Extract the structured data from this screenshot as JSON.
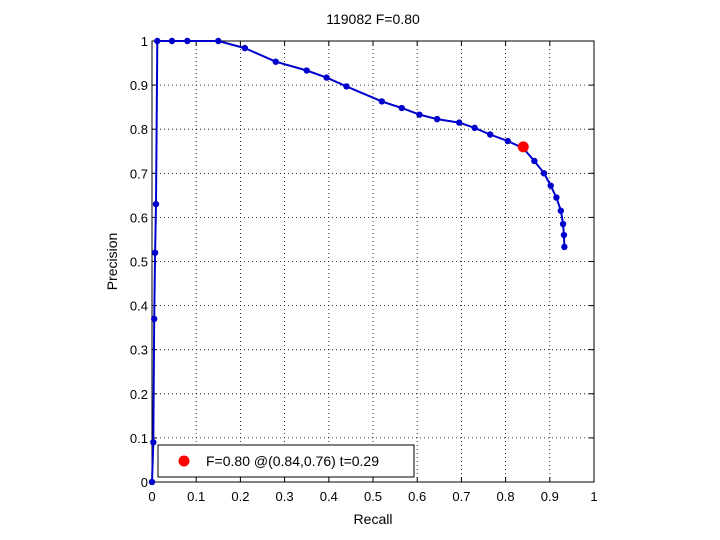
{
  "chart_data": {
    "type": "line",
    "title": "119082 F=0.80",
    "xlabel": "Recall",
    "ylabel": "Precision",
    "xlim": [
      0,
      1
    ],
    "ylim": [
      0,
      1
    ],
    "xticks": [
      "0",
      "0.1",
      "0.2",
      "0.3",
      "0.4",
      "0.5",
      "0.6",
      "0.7",
      "0.8",
      "0.9",
      "1"
    ],
    "yticks": [
      "0",
      "0.1",
      "0.2",
      "0.3",
      "0.4",
      "0.5",
      "0.6",
      "0.7",
      "0.8",
      "0.9",
      "1"
    ],
    "grid": true,
    "legend_position": "bottom-left",
    "line_color": "#0000cc",
    "marker_color": "#0000cc",
    "best_color": "#ff0000",
    "series": [
      {
        "x": [
          0.0,
          0.003,
          0.005,
          0.007,
          0.009,
          0.012,
          0.045,
          0.08,
          0.15,
          0.21,
          0.28,
          0.35,
          0.395,
          0.44,
          0.52,
          0.565,
          0.605,
          0.645,
          0.695,
          0.73,
          0.765,
          0.805,
          0.84,
          0.865,
          0.887,
          0.902,
          0.915,
          0.925,
          0.93,
          0.932,
          0.933
        ],
        "y": [
          0.0,
          0.09,
          0.37,
          0.52,
          0.63,
          1.0,
          1.0,
          1.0,
          1.0,
          0.984,
          0.953,
          0.933,
          0.917,
          0.897,
          0.863,
          0.848,
          0.833,
          0.823,
          0.815,
          0.803,
          0.788,
          0.773,
          0.757,
          0.728,
          0.7,
          0.672,
          0.645,
          0.615,
          0.585,
          0.56,
          0.533
        ]
      }
    ],
    "best_point": {
      "x": 0.84,
      "y": 0.76
    },
    "legend_text": "F=0.80 @(0.84,0.76) t=0.29"
  }
}
